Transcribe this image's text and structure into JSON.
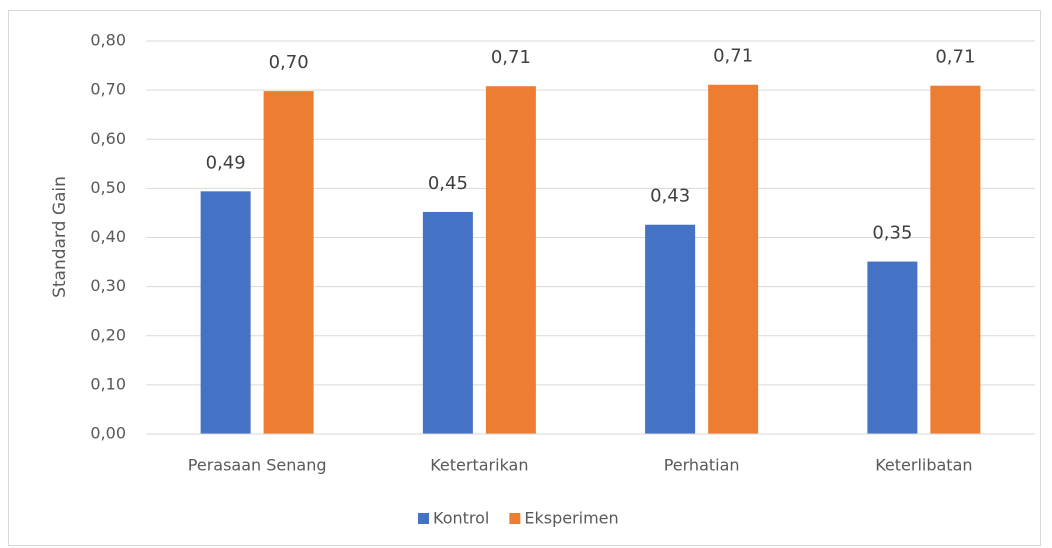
{
  "chart_data": {
    "type": "bar",
    "y_label": "Standard Gain",
    "categories": [
      "Perasaan Senang",
      "Ketertarikan",
      "Perhatian",
      "Keterlibatan"
    ],
    "series": [
      {
        "name": "Kontrol",
        "color": "#4472c4",
        "values": [
          0.494,
          0.452,
          0.426,
          0.351
        ],
        "value_labels": [
          "0,49",
          "0,45",
          "0,43",
          "0,35"
        ]
      },
      {
        "name": "Eksperimen",
        "color": "#ed7d31",
        "values": [
          0.698,
          0.708,
          0.711,
          0.709
        ],
        "value_labels": [
          "0,70",
          "0,71",
          "0,71",
          "0,71"
        ]
      }
    ],
    "ylim": [
      0,
      0.8
    ],
    "yticks": [
      {
        "value": 0,
        "label": "0,00"
      },
      {
        "value": 0.1,
        "label": "0,10"
      },
      {
        "value": 0.2,
        "label": "0,20"
      },
      {
        "value": 0.3,
        "label": "0,30"
      },
      {
        "value": 0.4,
        "label": "0,40"
      },
      {
        "value": 0.5,
        "label": "0,50"
      },
      {
        "value": 0.6,
        "label": "0,60"
      },
      {
        "value": 0.7,
        "label": "0,70"
      },
      {
        "value": 0.8,
        "label": "0,80"
      }
    ],
    "grid": true,
    "legend": "bottom"
  }
}
